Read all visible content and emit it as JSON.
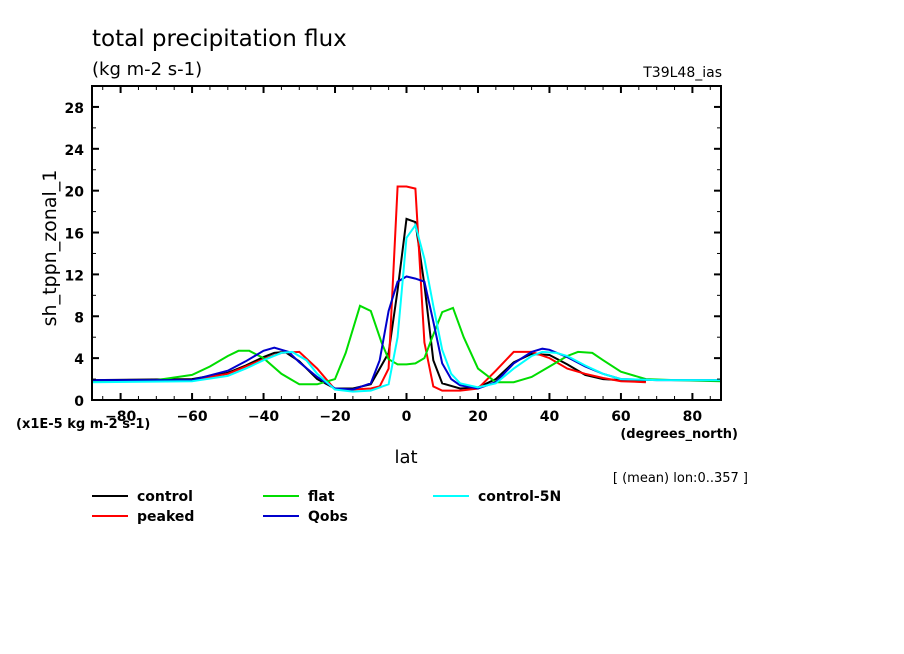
{
  "header": {
    "title": "total precipitation flux",
    "units": "(kg m-2 s-1)",
    "dataset": "T39L48_ias"
  },
  "chart_data": {
    "type": "line",
    "title": "total precipitation flux",
    "subtitle": "(kg m-2 s-1)",
    "xlabel": "lat",
    "x_units": "(degrees_north)",
    "ylabel": "sh_tppn_zonal_1",
    "y_units": "(x1E-5 kg m-2 s-1)",
    "annotation": "[ (mean) lon:0..357 ]",
    "xlim": [
      -88,
      88
    ],
    "ylim": [
      0,
      30
    ],
    "xticks": [
      -80,
      -60,
      -40,
      -20,
      0,
      20,
      40,
      60,
      80
    ],
    "xtick_labels": [
      "-80",
      "-60",
      "-40",
      "-20",
      "0",
      "20",
      "40",
      "60",
      "80"
    ],
    "yticks": [
      0,
      4,
      8,
      12,
      16,
      20,
      24,
      28
    ],
    "ytick_labels": [
      "0",
      "4",
      "8",
      "12",
      "16",
      "20",
      "24",
      "28"
    ],
    "grid": false,
    "legend_position": "bottom",
    "series": [
      {
        "name": "control",
        "color": "#000000",
        "x": [
          -88,
          -60,
          -50,
          -45,
          -40,
          -37,
          -34,
          -30,
          -25,
          -20,
          -15,
          -10,
          -5,
          -2.5,
          0,
          2.5,
          5,
          7.5,
          10,
          15,
          20,
          25,
          30,
          35,
          40,
          45,
          50,
          55,
          60,
          67
        ],
        "y": [
          1.9,
          2.0,
          2.6,
          3.3,
          4.1,
          4.5,
          4.6,
          3.7,
          2.0,
          1.1,
          1.1,
          1.5,
          4.5,
          10.5,
          17.3,
          17.0,
          11.0,
          3.8,
          1.6,
          1.1,
          1.2,
          2.0,
          3.6,
          4.4,
          4.3,
          3.4,
          2.4,
          2.0,
          1.9,
          1.8
        ]
      },
      {
        "name": "peaked",
        "color": "#ff0000",
        "x": [
          -88,
          -60,
          -50,
          -45,
          -40,
          -35,
          -30,
          -25,
          -20,
          -15,
          -10,
          -7.5,
          -5,
          -2.5,
          0,
          2.5,
          5,
          7.5,
          10,
          15,
          20,
          25,
          30,
          35,
          40,
          45,
          50,
          55,
          60,
          67
        ],
        "y": [
          1.8,
          1.9,
          2.5,
          3.2,
          3.9,
          4.5,
          4.6,
          3.0,
          1.0,
          1.0,
          1.1,
          1.3,
          3.0,
          20.4,
          20.4,
          20.2,
          5.5,
          1.3,
          0.9,
          0.9,
          1.1,
          2.8,
          4.6,
          4.6,
          4.0,
          3.0,
          2.5,
          2.1,
          1.8,
          1.7
        ]
      },
      {
        "name": "flat",
        "color": "#00dd00",
        "x": [
          -88,
          -70,
          -60,
          -55,
          -50,
          -47,
          -44,
          -40,
          -35,
          -30,
          -25,
          -20,
          -17,
          -13,
          -10,
          -7,
          -5,
          -2.5,
          0,
          2.5,
          5,
          7,
          10,
          13,
          16,
          20,
          25,
          30,
          35,
          40,
          45,
          48,
          52,
          55,
          60,
          67,
          75,
          88
        ],
        "y": [
          1.8,
          1.9,
          2.4,
          3.2,
          4.2,
          4.7,
          4.7,
          4.0,
          2.5,
          1.5,
          1.5,
          2.0,
          4.5,
          9.0,
          8.5,
          5.5,
          3.9,
          3.4,
          3.4,
          3.5,
          4.0,
          5.8,
          8.4,
          8.8,
          6.0,
          3.0,
          1.7,
          1.7,
          2.2,
          3.2,
          4.2,
          4.6,
          4.5,
          3.8,
          2.7,
          2.0,
          1.9,
          1.8
        ]
      },
      {
        "name": "Qobs",
        "color": "#0000cc",
        "x": [
          -88,
          -60,
          -50,
          -45,
          -40,
          -37,
          -33,
          -30,
          -25,
          -20,
          -15,
          -10,
          -7.5,
          -5,
          -2.5,
          0,
          2.5,
          5,
          7.5,
          10,
          12.5,
          15,
          20,
          25,
          30,
          35,
          38,
          40,
          45,
          50,
          55,
          60,
          70,
          88
        ],
        "y": [
          1.9,
          1.9,
          2.8,
          3.7,
          4.7,
          5.0,
          4.6,
          3.6,
          2.2,
          1.1,
          1.0,
          1.6,
          3.8,
          8.5,
          11.3,
          11.8,
          11.6,
          11.3,
          7.5,
          3.5,
          2.0,
          1.4,
          1.1,
          1.7,
          3.5,
          4.6,
          4.9,
          4.8,
          4.1,
          3.2,
          2.5,
          2.0,
          1.9,
          1.9
        ]
      },
      {
        "name": "control-5N",
        "color": "#00ffff",
        "x": [
          -88,
          -60,
          -50,
          -45,
          -40,
          -35,
          -32,
          -28,
          -25,
          -20,
          -15,
          -10,
          -5,
          -2.5,
          0,
          2.5,
          5,
          7.5,
          10,
          12.5,
          15,
          20,
          25,
          30,
          35,
          38,
          42,
          45,
          50,
          55,
          60,
          70,
          88
        ],
        "y": [
          1.7,
          1.8,
          2.3,
          3.0,
          3.8,
          4.5,
          4.6,
          3.8,
          2.5,
          1.0,
          0.8,
          0.9,
          1.5,
          6.0,
          15.5,
          16.7,
          13.5,
          9.0,
          4.8,
          2.5,
          1.6,
          1.2,
          1.6,
          3.0,
          4.2,
          4.6,
          4.5,
          4.2,
          3.3,
          2.5,
          2.0,
          1.9,
          1.9
        ]
      }
    ]
  }
}
